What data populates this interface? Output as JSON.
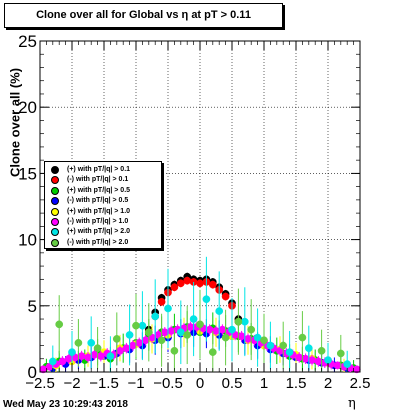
{
  "title": "Clone  over all for Global vs   η at pT > 0.11",
  "datestamp": "Wed May 23 10:29:43 2018",
  "chart_data": {
    "type": "scatter",
    "xlabel": "η",
    "ylabel": "Clone  over all (%)",
    "xlim": [
      -2.5,
      2.5
    ],
    "ylim": [
      0,
      25
    ],
    "x_ticks": [
      -2.5,
      -2,
      -1.5,
      -1,
      -0.5,
      0,
      0.5,
      1,
      1.5,
      2,
      2.5
    ],
    "x_tick_labels": [
      "−2.5",
      "−2",
      "−1.5",
      "−1",
      "−0.5",
      "0",
      "0.5",
      "1",
      "1.5",
      "2",
      "2.5"
    ],
    "y_ticks": [
      0,
      5,
      10,
      15,
      20,
      25
    ],
    "y_tick_labels": [
      "0",
      "5",
      "10",
      "15",
      "20",
      "25"
    ],
    "grid": true,
    "legend_position": "left-middle",
    "series": [
      {
        "name": "(+) with pT/|q| > 0.1",
        "color": "#000000",
        "x": [
          -0.8,
          -0.7,
          -0.6,
          -0.5,
          -0.4,
          -0.3,
          -0.2,
          -0.1,
          0.0,
          0.1,
          0.2,
          0.3,
          0.4,
          0.5,
          0.6
        ],
        "y": [
          3.2,
          4.5,
          5.6,
          6.2,
          6.6,
          6.9,
          7.2,
          7.0,
          6.9,
          7.0,
          6.8,
          6.4,
          5.9,
          5.2,
          4.0
        ],
        "err": [
          0.3,
          0.3,
          0.3,
          0.3,
          0.3,
          0.3,
          0.3,
          0.3,
          0.3,
          0.3,
          0.3,
          0.3,
          0.3,
          0.3,
          0.3
        ]
      },
      {
        "name": "(-) with pT/|q| > 0.1",
        "color": "#ff0000",
        "x": [
          -0.8,
          -0.7,
          -0.6,
          -0.5,
          -0.4,
          -0.3,
          -0.2,
          -0.1,
          0.0,
          0.1,
          0.2,
          0.3,
          0.4,
          0.5,
          0.6
        ],
        "y": [
          3.0,
          4.2,
          5.3,
          6.0,
          6.4,
          6.7,
          6.9,
          6.8,
          6.7,
          6.8,
          6.6,
          6.2,
          5.7,
          5.0,
          3.8
        ],
        "err": [
          0.3,
          0.3,
          0.3,
          0.3,
          0.3,
          0.3,
          0.3,
          0.3,
          0.3,
          0.3,
          0.3,
          0.3,
          0.3,
          0.3,
          0.3
        ]
      },
      {
        "name": "(+) with pT/|q| > 0.5",
        "color": "#00cc00",
        "x": [
          -2.4,
          -2.2,
          -2.0,
          -1.8,
          -1.6,
          -1.4,
          -1.2,
          -1.0,
          -0.8,
          -0.6,
          -0.4,
          -0.2,
          0.0,
          0.2,
          0.4,
          0.6,
          0.8,
          1.0,
          1.2,
          1.4,
          1.6,
          1.8,
          2.0,
          2.2,
          2.4
        ],
        "y": [
          0.4,
          0.8,
          1.2,
          0.9,
          1.5,
          1.0,
          1.8,
          2.2,
          2.8,
          3.0,
          3.2,
          3.4,
          3.0,
          3.3,
          3.1,
          2.7,
          2.5,
          2.0,
          1.6,
          1.2,
          1.0,
          0.9,
          0.7,
          0.5,
          0.3
        ],
        "err": [
          0.6,
          0.8,
          0.9,
          0.8,
          1.0,
          0.9,
          1.1,
          1.2,
          1.2,
          1.2,
          1.2,
          1.2,
          1.2,
          1.2,
          1.2,
          1.2,
          1.2,
          1.1,
          1.0,
          0.9,
          0.9,
          0.8,
          0.8,
          0.7,
          0.6
        ]
      },
      {
        "name": "(-) with pT/|q| > 0.5",
        "color": "#0000ff",
        "x": [
          -2.3,
          -2.1,
          -1.9,
          -1.7,
          -1.5,
          -1.3,
          -1.1,
          -0.9,
          -0.7,
          -0.5,
          -0.3,
          -0.1,
          0.1,
          0.3,
          0.5,
          0.7,
          0.9,
          1.1,
          1.3,
          1.5,
          1.7,
          1.9,
          2.1,
          2.3
        ],
        "y": [
          0.3,
          0.6,
          0.9,
          1.1,
          1.2,
          1.4,
          1.7,
          2.0,
          2.4,
          2.6,
          2.9,
          3.0,
          2.9,
          2.8,
          2.7,
          2.4,
          2.0,
          1.7,
          1.4,
          1.1,
          0.9,
          0.7,
          0.5,
          0.3
        ],
        "err": [
          0.5,
          0.6,
          0.7,
          0.8,
          0.8,
          0.9,
          1.0,
          1.0,
          1.1,
          1.1,
          1.1,
          1.1,
          1.1,
          1.1,
          1.1,
          1.1,
          1.0,
          1.0,
          0.9,
          0.8,
          0.8,
          0.7,
          0.6,
          0.5
        ]
      },
      {
        "name": "(+) with pT/|q| > 1.0",
        "color": "#ffff00",
        "x": [
          -2.25,
          -2.0,
          -1.75,
          -1.5,
          -1.25,
          -1.0,
          -0.75,
          -0.5,
          -0.25,
          0.0,
          0.25,
          0.5,
          0.75,
          1.0,
          1.25,
          1.5,
          1.75,
          2.0,
          2.25
        ],
        "y": [
          0.5,
          0.8,
          1.2,
          1.5,
          1.8,
          2.1,
          2.5,
          2.8,
          3.0,
          3.1,
          3.0,
          2.7,
          2.4,
          2.0,
          1.7,
          1.3,
          1.0,
          0.7,
          0.4
        ],
        "err": [
          0.6,
          0.7,
          0.8,
          0.9,
          1.0,
          1.0,
          1.1,
          1.1,
          1.1,
          1.1,
          1.1,
          1.1,
          1.1,
          1.0,
          1.0,
          0.9,
          0.8,
          0.7,
          0.6
        ]
      },
      {
        "name": "(-) with pT/|q| > 1.0",
        "color": "#ff00ff",
        "x": [
          -2.45,
          -2.35,
          -2.25,
          -2.15,
          -2.05,
          -1.95,
          -1.85,
          -1.75,
          -1.65,
          -1.55,
          -1.45,
          -1.35,
          -1.25,
          -1.15,
          -1.05,
          -0.95,
          -0.85,
          -0.75,
          -0.65,
          -0.55,
          -0.45,
          -0.35,
          -0.25,
          -0.15,
          -0.05,
          0.05,
          0.15,
          0.25,
          0.35,
          0.45,
          0.55,
          0.65,
          0.75,
          0.85,
          0.95,
          1.05,
          1.15,
          1.25,
          1.35,
          1.45,
          1.55,
          1.65,
          1.75,
          1.85,
          1.95,
          2.05,
          2.15,
          2.25,
          2.35,
          2.45
        ],
        "y": [
          0.2,
          0.4,
          0.6,
          0.8,
          1.0,
          1.1,
          1.2,
          1.1,
          1.3,
          1.2,
          1.4,
          1.3,
          1.6,
          1.8,
          2.0,
          2.2,
          2.4,
          2.6,
          2.8,
          3.0,
          3.1,
          3.2,
          3.3,
          3.4,
          3.4,
          3.3,
          3.2,
          3.1,
          3.2,
          3.0,
          2.8,
          2.7,
          2.5,
          2.4,
          2.2,
          2.0,
          1.8,
          1.6,
          1.4,
          1.3,
          1.1,
          1.0,
          0.9,
          0.8,
          0.7,
          0.6,
          0.5,
          0.4,
          0.3,
          0.2
        ],
        "err": [
          0.3,
          0.3,
          0.3,
          0.4,
          0.4,
          0.4,
          0.4,
          0.4,
          0.4,
          0.4,
          0.4,
          0.4,
          0.4,
          0.4,
          0.4,
          0.4,
          0.4,
          0.4,
          0.4,
          0.4,
          0.4,
          0.4,
          0.4,
          0.4,
          0.4,
          0.4,
          0.4,
          0.4,
          0.4,
          0.4,
          0.4,
          0.4,
          0.4,
          0.4,
          0.4,
          0.4,
          0.4,
          0.4,
          0.4,
          0.4,
          0.4,
          0.4,
          0.4,
          0.4,
          0.4,
          0.4,
          0.3,
          0.3,
          0.3,
          0.3
        ]
      },
      {
        "name": "(+) with pT/|q| > 2.0",
        "color": "#00e5e5",
        "x": [
          -2.3,
          -2.0,
          -1.7,
          -1.4,
          -1.1,
          -0.9,
          -0.7,
          -0.5,
          -0.3,
          -0.1,
          0.1,
          0.3,
          0.5,
          0.7,
          0.9,
          1.1,
          1.4,
          1.7,
          2.0,
          2.3
        ],
        "y": [
          0.8,
          1.5,
          2.2,
          1.2,
          2.8,
          3.5,
          4.2,
          4.8,
          3.0,
          4.0,
          5.5,
          4.6,
          3.2,
          3.8,
          2.6,
          2.0,
          1.5,
          1.8,
          0.9,
          0.6
        ],
        "err": [
          1.2,
          1.6,
          2.0,
          1.5,
          2.3,
          2.6,
          2.8,
          3.0,
          2.4,
          2.8,
          3.2,
          3.0,
          2.4,
          2.6,
          2.2,
          1.8,
          1.6,
          1.7,
          1.3,
          1.0
        ]
      },
      {
        "name": "(-) with pT/|q| > 2.0",
        "color": "#66cc44",
        "x": [
          -2.2,
          -1.9,
          -1.6,
          -1.3,
          -1.0,
          -0.8,
          -0.6,
          -0.4,
          -0.2,
          0.0,
          0.2,
          0.4,
          0.6,
          0.8,
          1.0,
          1.3,
          1.6,
          1.9,
          2.2
        ],
        "y": [
          3.6,
          2.2,
          1.8,
          2.5,
          3.5,
          3.0,
          2.4,
          1.6,
          2.8,
          3.6,
          1.5,
          2.6,
          3.8,
          3.2,
          2.4,
          2.0,
          2.6,
          1.6,
          1.4
        ],
        "err": [
          2.2,
          1.8,
          1.6,
          2.0,
          2.4,
          2.2,
          2.0,
          1.6,
          2.2,
          2.6,
          1.6,
          2.1,
          2.5,
          2.3,
          2.0,
          1.8,
          2.0,
          1.6,
          1.4
        ]
      }
    ]
  }
}
